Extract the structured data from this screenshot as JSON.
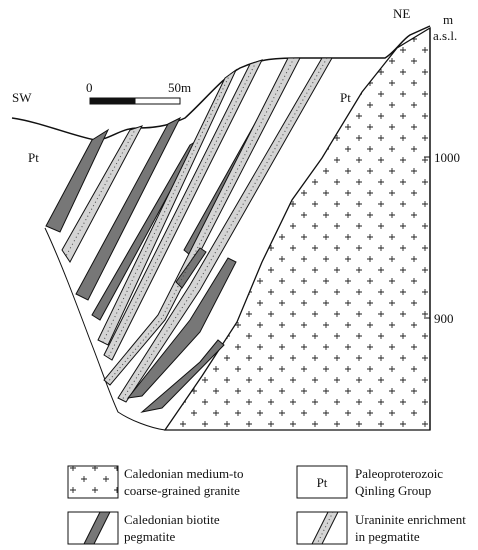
{
  "section": {
    "sw_label": "SW",
    "ne_label": "NE",
    "unit_labels": [
      "Pt",
      "Pt"
    ]
  },
  "scale_bar": {
    "start": "0",
    "end": "50m"
  },
  "elevation_axis": {
    "unit_lines": [
      "m",
      "a.s.l."
    ],
    "ticks": [
      1000,
      900
    ]
  },
  "legend": [
    {
      "label_lines": [
        "Caledonian medium-to",
        "coarse-grained granite"
      ]
    },
    {
      "symbol_text": "Pt",
      "label_lines": [
        "Paleoproterozoic",
        "Qinling Group"
      ]
    },
    {
      "label_lines": [
        "Caledonian biotite",
        "pegmatite"
      ]
    },
    {
      "label_lines": [
        "Uraninite enrichment",
        "in pegmatite"
      ]
    }
  ]
}
